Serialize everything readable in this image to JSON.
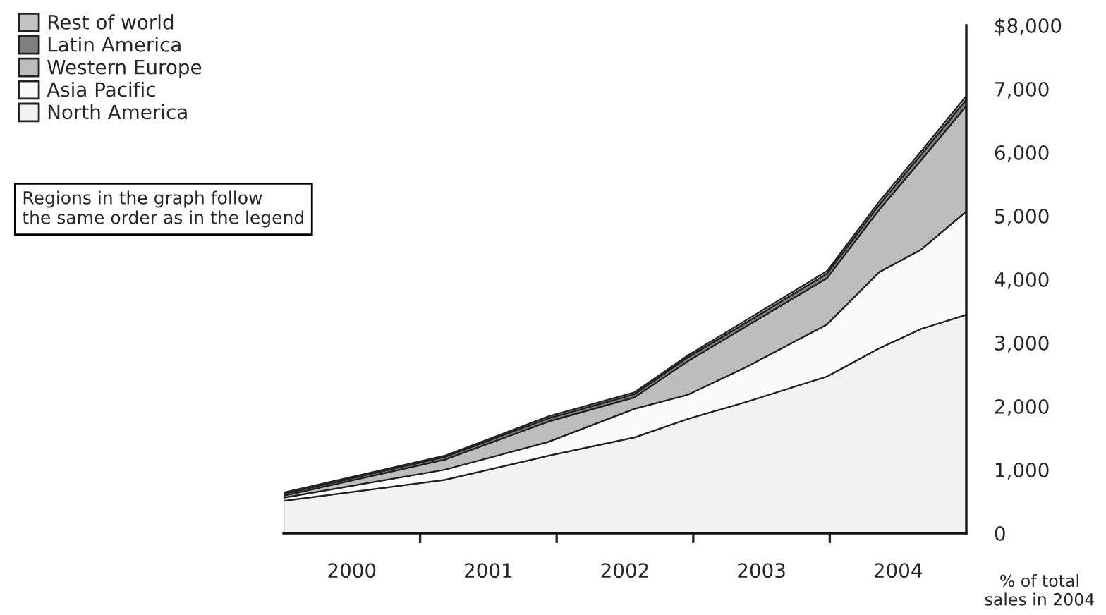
{
  "chart_data": {
    "type": "area",
    "stacked": true,
    "x": [
      2000.0,
      2001.18,
      2001.94,
      2002.57,
      2002.96,
      2003.39,
      2003.98,
      2004.36,
      2004.67,
      2005.0
    ],
    "series": [
      {
        "name": "North America",
        "color": "#f2f2f2",
        "values": [
          510,
          840,
          1220,
          1510,
          1800,
          2070,
          2470,
          2910,
          3220,
          3440
        ]
      },
      {
        "name": "Asia Pacific",
        "color": "#fbfbfb",
        "values": [
          50,
          160,
          220,
          450,
          380,
          550,
          820,
          1200,
          1250,
          1630
        ]
      },
      {
        "name": "Western Europe",
        "color": "#bdbdbd",
        "values": [
          30,
          160,
          320,
          180,
          530,
          640,
          730,
          980,
          1410,
          1660
        ]
      },
      {
        "name": "Latin America",
        "color": "#7f7f7f",
        "values": [
          30,
          40,
          50,
          50,
          60,
          60,
          70,
          80,
          90,
          100
        ]
      },
      {
        "name": "Rest of world",
        "color": "#c4c4c4",
        "values": [
          20,
          20,
          30,
          30,
          30,
          40,
          40,
          50,
          50,
          60
        ]
      }
    ],
    "xlim": [
      2000,
      2005
    ],
    "xticks": [
      {
        "value": 2000.5,
        "label": "2000"
      },
      {
        "value": 2001,
        "label": null
      },
      {
        "value": 2001.5,
        "label": "2001"
      },
      {
        "value": 2002,
        "label": null
      },
      {
        "value": 2002.5,
        "label": "2002"
      },
      {
        "value": 2003,
        "label": null
      },
      {
        "value": 2003.5,
        "label": "2003"
      },
      {
        "value": 2004,
        "label": null
      },
      {
        "value": 2004.5,
        "label": "2004"
      }
    ],
    "ylim": [
      0,
      8000
    ],
    "yticks": [
      0,
      {
        "value": 1000,
        "label": "1,000"
      },
      {
        "value": 2000,
        "label": "2,000"
      },
      {
        "value": 3000,
        "label": "3,000"
      },
      {
        "value": 4000,
        "label": "4,000"
      },
      {
        "value": 5000,
        "label": "5,000"
      },
      {
        "value": 6000,
        "label": "6,000"
      },
      {
        "value": 7000,
        "label": "7,000"
      },
      {
        "value": 8000,
        "label": "$8,000"
      }
    ],
    "legend": "top left",
    "grid": false,
    "annotations": [
      "Regions in the graph follow the same order as in the legend",
      "% of total sales in 2004"
    ]
  }
}
